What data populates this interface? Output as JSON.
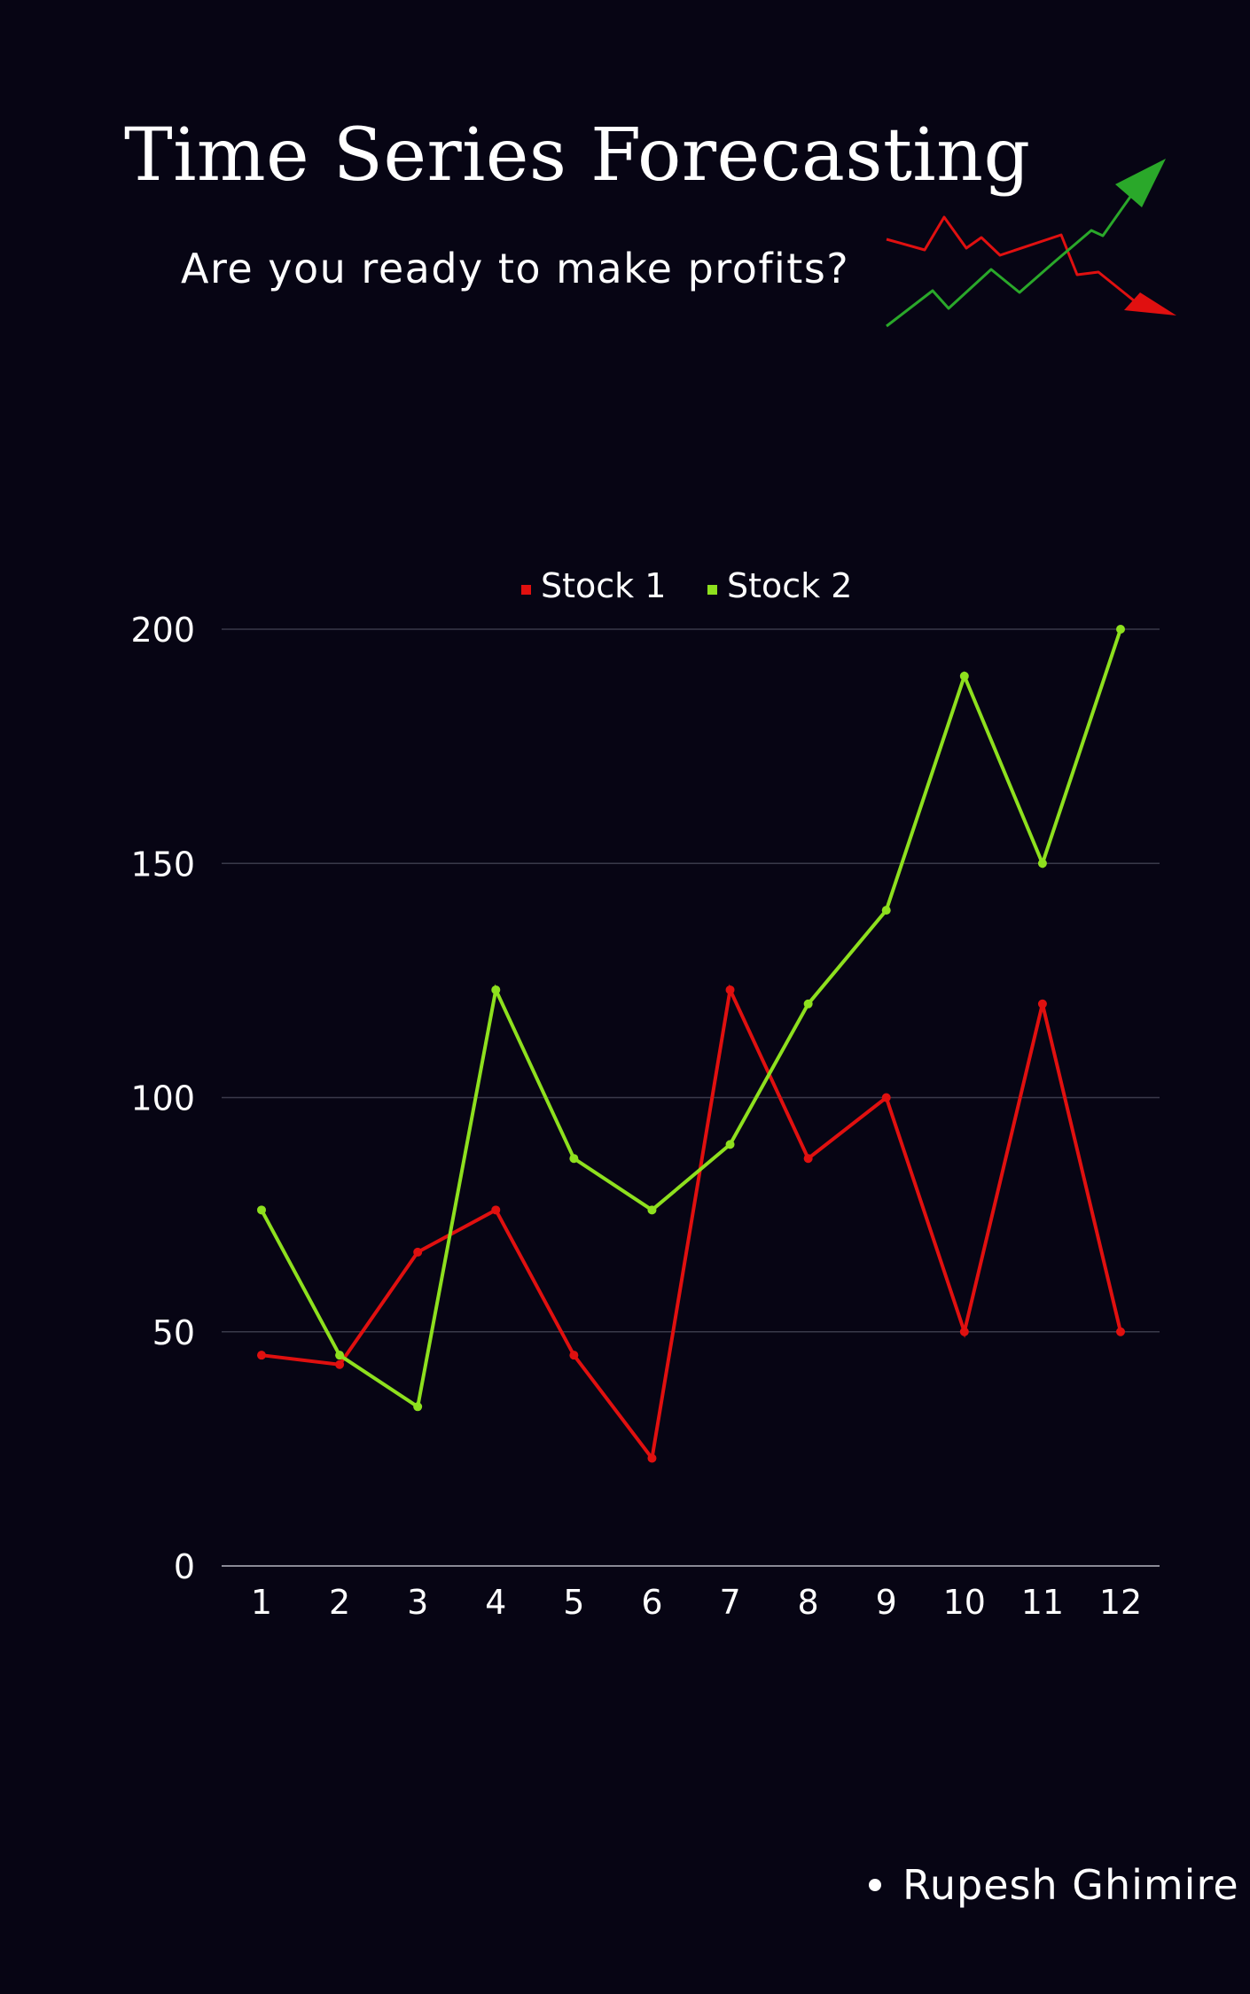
{
  "header": {
    "title": "Time Series Forecasting",
    "subtitle": "Are you ready to make profits?"
  },
  "decoration": {
    "icon": "stock-trend-arrows-icon",
    "up_color": "#2aa82a",
    "down_color": "#e01010"
  },
  "author": {
    "name": "Rupesh Ghimire"
  },
  "colors": {
    "background": "#070514",
    "stock1": "#e0100f",
    "stock2": "#8ee01e",
    "grid": "#3a3a4a",
    "text": "#ffffff"
  },
  "chart_data": {
    "type": "line",
    "title": "",
    "xlabel": "",
    "ylabel": "",
    "categories": [
      "1",
      "2",
      "3",
      "4",
      "5",
      "6",
      "7",
      "8",
      "9",
      "10",
      "11",
      "12"
    ],
    "series": [
      {
        "name": "Stock 1",
        "color": "#e0100f",
        "values": [
          45,
          43,
          67,
          76,
          45,
          23,
          123,
          87,
          100,
          50,
          120,
          50
        ]
      },
      {
        "name": "Stock 2",
        "color": "#8ee01e",
        "values": [
          76,
          45,
          34,
          123,
          87,
          76,
          90,
          120,
          140,
          190,
          150,
          200
        ]
      }
    ],
    "ylim": [
      0,
      200
    ],
    "yticks": [
      "0",
      "50",
      "100",
      "150",
      "200"
    ],
    "grid": true,
    "legend_position": "top-center"
  }
}
